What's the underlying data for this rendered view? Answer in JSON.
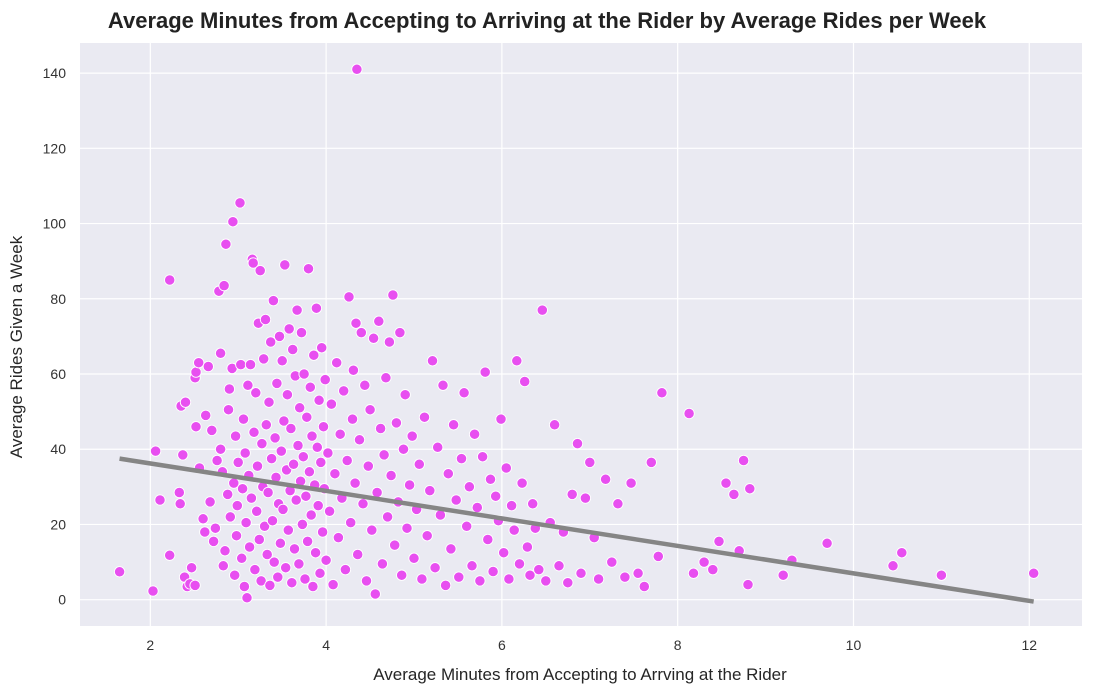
{
  "chart_data": {
    "type": "scatter",
    "title": "Average Minutes from Accepting to Arriving at the Rider by Average Rides per Week",
    "xlabel": "Average Minutes from Accepting to Arrving at the Rider",
    "ylabel": "Average Rides Given a Week",
    "xlim": [
      1.2,
      12.6
    ],
    "ylim": [
      -7,
      148
    ],
    "xticks": [
      2,
      4,
      6,
      8,
      10,
      12
    ],
    "yticks": [
      0,
      20,
      40,
      60,
      80,
      100,
      120,
      140
    ],
    "grid": true,
    "point_color": "#e84ff0",
    "point_edge_color": "#ffffff",
    "trend_color": "#858585",
    "background_color": "#eaeaf2",
    "trendline": {
      "x": [
        1.65,
        12.05
      ],
      "y": [
        37.5,
        -0.5
      ]
    },
    "points": [
      [
        1.65,
        7.4
      ],
      [
        2.03,
        2.3
      ],
      [
        2.06,
        39.5
      ],
      [
        2.11,
        26.5
      ],
      [
        2.22,
        11.8
      ],
      [
        2.22,
        85.0
      ],
      [
        2.33,
        28.5
      ],
      [
        2.34,
        25.5
      ],
      [
        2.35,
        51.5
      ],
      [
        2.37,
        38.5
      ],
      [
        2.39,
        6.0
      ],
      [
        2.4,
        52.5
      ],
      [
        2.42,
        3.5
      ],
      [
        2.45,
        4.2
      ],
      [
        2.47,
        8.5
      ],
      [
        2.51,
        3.8
      ],
      [
        2.51,
        59.0
      ],
      [
        2.52,
        46.0
      ],
      [
        2.52,
        60.5
      ],
      [
        2.55,
        63.0
      ],
      [
        2.56,
        35.0
      ],
      [
        2.6,
        21.5
      ],
      [
        2.62,
        18.0
      ],
      [
        2.63,
        49.0
      ],
      [
        2.66,
        62.0
      ],
      [
        2.68,
        26.0
      ],
      [
        2.7,
        45.0
      ],
      [
        2.72,
        15.5
      ],
      [
        2.74,
        19.0
      ],
      [
        2.76,
        37.0
      ],
      [
        2.78,
        82.0
      ],
      [
        2.8,
        40.0
      ],
      [
        2.8,
        65.5
      ],
      [
        2.82,
        34.0
      ],
      [
        2.83,
        9.0
      ],
      [
        2.84,
        83.5
      ],
      [
        2.85,
        13.0
      ],
      [
        2.86,
        94.5
      ],
      [
        2.88,
        28.0
      ],
      [
        2.89,
        50.5
      ],
      [
        2.9,
        56.0
      ],
      [
        2.91,
        22.0
      ],
      [
        2.93,
        61.5
      ],
      [
        2.94,
        100.5
      ],
      [
        2.95,
        31.0
      ],
      [
        2.96,
        6.5
      ],
      [
        2.97,
        43.5
      ],
      [
        2.98,
        17.0
      ],
      [
        2.99,
        25.0
      ],
      [
        3.0,
        36.5
      ],
      [
        3.02,
        105.5
      ],
      [
        3.03,
        62.5
      ],
      [
        3.04,
        11.0
      ],
      [
        3.05,
        29.5
      ],
      [
        3.06,
        48.0
      ],
      [
        3.07,
        3.5
      ],
      [
        3.08,
        39.0
      ],
      [
        3.09,
        20.5
      ],
      [
        3.1,
        0.5
      ],
      [
        3.11,
        57.0
      ],
      [
        3.12,
        33.0
      ],
      [
        3.13,
        14.0
      ],
      [
        3.14,
        62.5
      ],
      [
        3.15,
        27.0
      ],
      [
        3.16,
        90.5
      ],
      [
        3.17,
        89.5
      ],
      [
        3.18,
        44.5
      ],
      [
        3.19,
        8.0
      ],
      [
        3.2,
        55.0
      ],
      [
        3.21,
        23.5
      ],
      [
        3.22,
        35.5
      ],
      [
        3.23,
        73.5
      ],
      [
        3.24,
        16.0
      ],
      [
        3.25,
        87.5
      ],
      [
        3.26,
        5.0
      ],
      [
        3.27,
        41.5
      ],
      [
        3.28,
        30.0
      ],
      [
        3.29,
        64.0
      ],
      [
        3.3,
        19.5
      ],
      [
        3.31,
        74.5
      ],
      [
        3.32,
        46.5
      ],
      [
        3.33,
        12.0
      ],
      [
        3.34,
        28.5
      ],
      [
        3.35,
        52.5
      ],
      [
        3.36,
        3.8
      ],
      [
        3.37,
        68.5
      ],
      [
        3.38,
        37.5
      ],
      [
        3.39,
        21.0
      ],
      [
        3.4,
        79.5
      ],
      [
        3.41,
        10.0
      ],
      [
        3.42,
        43.0
      ],
      [
        3.43,
        32.5
      ],
      [
        3.44,
        57.5
      ],
      [
        3.45,
        6.0
      ],
      [
        3.46,
        25.5
      ],
      [
        3.47,
        70.0
      ],
      [
        3.48,
        15.0
      ],
      [
        3.49,
        39.5
      ],
      [
        3.5,
        63.5
      ],
      [
        3.51,
        24.0
      ],
      [
        3.52,
        47.5
      ],
      [
        3.53,
        89.0
      ],
      [
        3.54,
        8.5
      ],
      [
        3.55,
        34.5
      ],
      [
        3.56,
        54.5
      ],
      [
        3.57,
        18.5
      ],
      [
        3.58,
        72.0
      ],
      [
        3.59,
        29.0
      ],
      [
        3.6,
        45.5
      ],
      [
        3.61,
        4.5
      ],
      [
        3.62,
        66.5
      ],
      [
        3.63,
        36.0
      ],
      [
        3.64,
        13.5
      ],
      [
        3.65,
        59.5
      ],
      [
        3.66,
        26.5
      ],
      [
        3.67,
        77.0
      ],
      [
        3.68,
        41.0
      ],
      [
        3.69,
        9.5
      ],
      [
        3.7,
        51.0
      ],
      [
        3.71,
        31.5
      ],
      [
        3.72,
        71.0
      ],
      [
        3.73,
        20.0
      ],
      [
        3.74,
        38.0
      ],
      [
        3.75,
        60.0
      ],
      [
        3.76,
        5.5
      ],
      [
        3.77,
        27.5
      ],
      [
        3.78,
        48.5
      ],
      [
        3.79,
        15.5
      ],
      [
        3.8,
        88.0
      ],
      [
        3.81,
        34.0
      ],
      [
        3.82,
        56.5
      ],
      [
        3.83,
        22.5
      ],
      [
        3.84,
        43.5
      ],
      [
        3.85,
        3.5
      ],
      [
        3.86,
        65.0
      ],
      [
        3.87,
        30.5
      ],
      [
        3.88,
        12.5
      ],
      [
        3.89,
        77.5
      ],
      [
        3.9,
        40.5
      ],
      [
        3.91,
        25.0
      ],
      [
        3.92,
        53.0
      ],
      [
        3.93,
        7.0
      ],
      [
        3.94,
        36.5
      ],
      [
        3.95,
        67.0
      ],
      [
        3.96,
        18.0
      ],
      [
        3.97,
        46.0
      ],
      [
        3.98,
        29.5
      ],
      [
        3.99,
        58.5
      ],
      [
        4.0,
        10.5
      ],
      [
        4.02,
        39.0
      ],
      [
        4.04,
        23.5
      ],
      [
        4.06,
        52.0
      ],
      [
        4.08,
        4.0
      ],
      [
        4.1,
        33.5
      ],
      [
        4.12,
        63.0
      ],
      [
        4.14,
        16.5
      ],
      [
        4.16,
        44.0
      ],
      [
        4.18,
        27.0
      ],
      [
        4.2,
        55.5
      ],
      [
        4.22,
        8.0
      ],
      [
        4.24,
        37.0
      ],
      [
        4.26,
        80.5
      ],
      [
        4.28,
        20.5
      ],
      [
        4.3,
        48.0
      ],
      [
        4.31,
        61.0
      ],
      [
        4.33,
        31.0
      ],
      [
        4.34,
        73.5
      ],
      [
        4.35,
        141.0
      ],
      [
        4.36,
        12.0
      ],
      [
        4.38,
        42.5
      ],
      [
        4.4,
        71.0
      ],
      [
        4.42,
        25.5
      ],
      [
        4.44,
        57.0
      ],
      [
        4.46,
        5.0
      ],
      [
        4.48,
        35.5
      ],
      [
        4.5,
        50.5
      ],
      [
        4.52,
        18.5
      ],
      [
        4.54,
        69.5
      ],
      [
        4.56,
        1.5
      ],
      [
        4.58,
        28.5
      ],
      [
        4.6,
        74.0
      ],
      [
        4.62,
        45.5
      ],
      [
        4.64,
        9.5
      ],
      [
        4.66,
        38.5
      ],
      [
        4.68,
        59.0
      ],
      [
        4.7,
        22.0
      ],
      [
        4.72,
        68.5
      ],
      [
        4.74,
        33.0
      ],
      [
        4.76,
        81.0
      ],
      [
        4.78,
        14.5
      ],
      [
        4.8,
        47.0
      ],
      [
        4.82,
        26.0
      ],
      [
        4.84,
        71.0
      ],
      [
        4.86,
        6.5
      ],
      [
        4.88,
        40.0
      ],
      [
        4.9,
        54.5
      ],
      [
        4.92,
        19.0
      ],
      [
        4.95,
        30.5
      ],
      [
        4.98,
        43.5
      ],
      [
        5.0,
        11.0
      ],
      [
        5.03,
        24.0
      ],
      [
        5.06,
        36.0
      ],
      [
        5.09,
        5.5
      ],
      [
        5.12,
        48.5
      ],
      [
        5.15,
        17.0
      ],
      [
        5.18,
        29.0
      ],
      [
        5.21,
        63.5
      ],
      [
        5.24,
        8.5
      ],
      [
        5.27,
        40.5
      ],
      [
        5.3,
        22.5
      ],
      [
        5.33,
        57.0
      ],
      [
        5.36,
        3.8
      ],
      [
        5.39,
        33.5
      ],
      [
        5.42,
        13.5
      ],
      [
        5.45,
        46.5
      ],
      [
        5.48,
        26.5
      ],
      [
        5.51,
        6.0
      ],
      [
        5.54,
        37.5
      ],
      [
        5.57,
        55.0
      ],
      [
        5.6,
        19.5
      ],
      [
        5.63,
        30.0
      ],
      [
        5.66,
        9.0
      ],
      [
        5.69,
        44.0
      ],
      [
        5.72,
        24.5
      ],
      [
        5.75,
        5.0
      ],
      [
        5.78,
        38.0
      ],
      [
        5.81,
        60.5
      ],
      [
        5.84,
        16.0
      ],
      [
        5.87,
        32.0
      ],
      [
        5.9,
        7.5
      ],
      [
        5.93,
        27.5
      ],
      [
        5.96,
        21.0
      ],
      [
        5.99,
        48.0
      ],
      [
        6.02,
        12.5
      ],
      [
        6.05,
        35.0
      ],
      [
        6.08,
        5.5
      ],
      [
        6.11,
        25.0
      ],
      [
        6.14,
        18.5
      ],
      [
        6.17,
        63.5
      ],
      [
        6.2,
        9.5
      ],
      [
        6.23,
        31.0
      ],
      [
        6.26,
        58.0
      ],
      [
        6.29,
        14.0
      ],
      [
        6.32,
        6.5
      ],
      [
        6.35,
        25.5
      ],
      [
        6.38,
        19.0
      ],
      [
        6.42,
        8.0
      ],
      [
        6.46,
        77.0
      ],
      [
        6.5,
        5.0
      ],
      [
        6.55,
        20.5
      ],
      [
        6.6,
        46.5
      ],
      [
        6.65,
        9.0
      ],
      [
        6.7,
        18.0
      ],
      [
        6.75,
        4.5
      ],
      [
        6.8,
        28.0
      ],
      [
        6.86,
        41.5
      ],
      [
        6.9,
        7.0
      ],
      [
        6.95,
        27.0
      ],
      [
        7.0,
        36.5
      ],
      [
        7.05,
        16.5
      ],
      [
        7.1,
        5.5
      ],
      [
        7.18,
        32.0
      ],
      [
        7.25,
        10.0
      ],
      [
        7.32,
        25.5
      ],
      [
        7.4,
        6.0
      ],
      [
        7.47,
        31.0
      ],
      [
        7.55,
        7.0
      ],
      [
        7.62,
        3.5
      ],
      [
        7.7,
        36.5
      ],
      [
        7.78,
        11.5
      ],
      [
        7.82,
        55.0
      ],
      [
        8.13,
        49.5
      ],
      [
        8.18,
        7.0
      ],
      [
        8.3,
        10.0
      ],
      [
        8.4,
        8.0
      ],
      [
        8.47,
        15.5
      ],
      [
        8.55,
        31.0
      ],
      [
        8.64,
        28.0
      ],
      [
        8.7,
        13.0
      ],
      [
        8.75,
        37.0
      ],
      [
        8.8,
        4.0
      ],
      [
        8.82,
        29.5
      ],
      [
        9.2,
        6.5
      ],
      [
        9.3,
        10.5
      ],
      [
        9.7,
        15.0
      ],
      [
        10.45,
        9.0
      ],
      [
        10.55,
        12.5
      ],
      [
        11.0,
        6.5
      ],
      [
        12.05,
        7.0
      ]
    ]
  }
}
